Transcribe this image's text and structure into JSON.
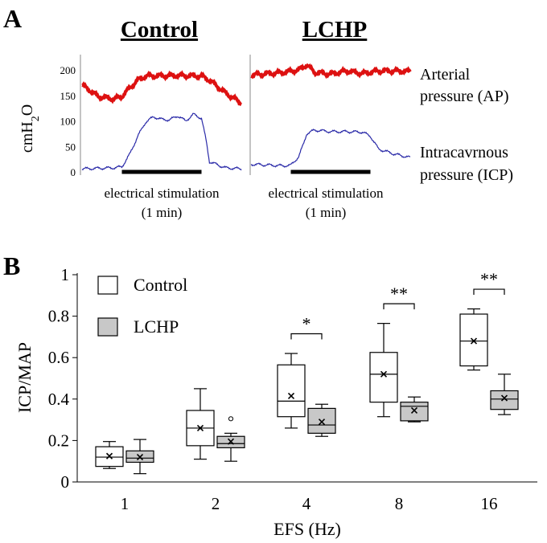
{
  "panel_labels": {
    "a": "A",
    "b": "B"
  },
  "colors": {
    "ap": "#dd1111",
    "icp": "#2a2aa8",
    "box_lchp": "#c8c8c8",
    "box_control": "#ffffff"
  },
  "chart_data": [
    {
      "type": "line",
      "panel": "A",
      "titles": {
        "control": "Control",
        "lchp": "LCHP"
      },
      "ylabel_main": "cmH",
      "ylabel_sub": "2",
      "ylabel_tail": "O",
      "yticks": [
        0,
        50,
        100,
        150,
        200
      ],
      "ylim": [
        0,
        230
      ],
      "xlabels": {
        "control": [
          "electrical stimulation",
          "(1 min)"
        ],
        "lchp": [
          "electrical stimulation",
          "(1 min)"
        ]
      },
      "stimulation": {
        "start": 0.25,
        "end": 0.75
      },
      "series_labels": {
        "ap": [
          "Arterial",
          "pressure (AP)"
        ],
        "icp": [
          "Intracavrnous",
          "pressure (ICP)"
        ]
      },
      "series": {
        "control": {
          "ap": [
            [
              0,
              170
            ],
            [
              0.05,
              160
            ],
            [
              0.1,
              148
            ],
            [
              0.2,
              143
            ],
            [
              0.25,
              148
            ],
            [
              0.3,
              165
            ],
            [
              0.35,
              180
            ],
            [
              0.4,
              188
            ],
            [
              0.6,
              189
            ],
            [
              0.75,
              188
            ],
            [
              0.8,
              180
            ],
            [
              0.9,
              155
            ],
            [
              1,
              135
            ]
          ],
          "icp": [
            [
              0,
              6
            ],
            [
              0.2,
              8
            ],
            [
              0.25,
              10
            ],
            [
              0.3,
              35
            ],
            [
              0.35,
              70
            ],
            [
              0.4,
              98
            ],
            [
              0.45,
              108
            ],
            [
              0.5,
              103
            ],
            [
              0.55,
              102
            ],
            [
              0.6,
              110
            ],
            [
              0.65,
              100
            ],
            [
              0.7,
              113
            ],
            [
              0.75,
              105
            ],
            [
              0.78,
              60
            ],
            [
              0.8,
              20
            ],
            [
              0.9,
              8
            ],
            [
              1,
              6
            ]
          ]
        },
        "lchp": {
          "ap": [
            [
              0,
              190
            ],
            [
              0.2,
              195
            ],
            [
              0.3,
              200
            ],
            [
              0.35,
              210
            ],
            [
              0.4,
              195
            ],
            [
              0.5,
              192
            ],
            [
              0.6,
              198
            ],
            [
              0.7,
              193
            ],
            [
              0.8,
              198
            ],
            [
              0.9,
              198
            ],
            [
              1,
              197
            ]
          ],
          "icp": [
            [
              0,
              15
            ],
            [
              0.2,
              12
            ],
            [
              0.25,
              13
            ],
            [
              0.3,
              30
            ],
            [
              0.33,
              55
            ],
            [
              0.35,
              75
            ],
            [
              0.4,
              82
            ],
            [
              0.5,
              79
            ],
            [
              0.6,
              79
            ],
            [
              0.7,
              78
            ],
            [
              0.75,
              70
            ],
            [
              0.8,
              45
            ],
            [
              0.9,
              35
            ],
            [
              1,
              28
            ]
          ]
        }
      }
    },
    {
      "type": "box",
      "panel": "B",
      "xlabel": "EFS (Hz)",
      "ylabel": "ICP/MAP",
      "ylim": [
        0,
        1
      ],
      "yticks": [
        0,
        0.2,
        0.4,
        0.6,
        0.8,
        1
      ],
      "ytick_labels": [
        "0",
        "0.2",
        "0.4",
        "0.6",
        "0.8",
        "1"
      ],
      "categories": [
        "1",
        "2",
        "4",
        "8",
        "16"
      ],
      "legend": [
        "Control",
        "LCHP"
      ],
      "significance": [
        "",
        "",
        "*",
        "**",
        "**"
      ],
      "series": [
        {
          "name": "Control",
          "boxes": [
            {
              "min": 0.065,
              "q1": 0.075,
              "median": 0.12,
              "q3": 0.17,
              "max": 0.195,
              "mean": 0.125,
              "outliers": []
            },
            {
              "min": 0.11,
              "q1": 0.175,
              "median": 0.26,
              "q3": 0.345,
              "max": 0.45,
              "mean": 0.26,
              "outliers": []
            },
            {
              "min": 0.26,
              "q1": 0.315,
              "median": 0.39,
              "q3": 0.565,
              "max": 0.62,
              "mean": 0.415,
              "outliers": []
            },
            {
              "min": 0.315,
              "q1": 0.385,
              "median": 0.52,
              "q3": 0.625,
              "max": 0.765,
              "mean": 0.52,
              "outliers": []
            },
            {
              "min": 0.54,
              "q1": 0.56,
              "median": 0.68,
              "q3": 0.81,
              "max": 0.835,
              "mean": 0.68,
              "outliers": []
            }
          ]
        },
        {
          "name": "LCHP",
          "boxes": [
            {
              "min": 0.04,
              "q1": 0.095,
              "median": 0.115,
              "q3": 0.15,
              "max": 0.205,
              "mean": 0.12,
              "outliers": []
            },
            {
              "min": 0.1,
              "q1": 0.165,
              "median": 0.185,
              "q3": 0.22,
              "max": 0.235,
              "mean": 0.195,
              "outliers": [
                0.305
              ]
            },
            {
              "min": 0.22,
              "q1": 0.235,
              "median": 0.275,
              "q3": 0.355,
              "max": 0.375,
              "mean": 0.29,
              "outliers": []
            },
            {
              "min": 0.29,
              "q1": 0.295,
              "median": 0.365,
              "q3": 0.385,
              "max": 0.41,
              "mean": 0.345,
              "outliers": []
            },
            {
              "min": 0.325,
              "q1": 0.35,
              "median": 0.4,
              "q3": 0.44,
              "max": 0.52,
              "mean": 0.405,
              "outliers": []
            }
          ]
        }
      ]
    }
  ]
}
